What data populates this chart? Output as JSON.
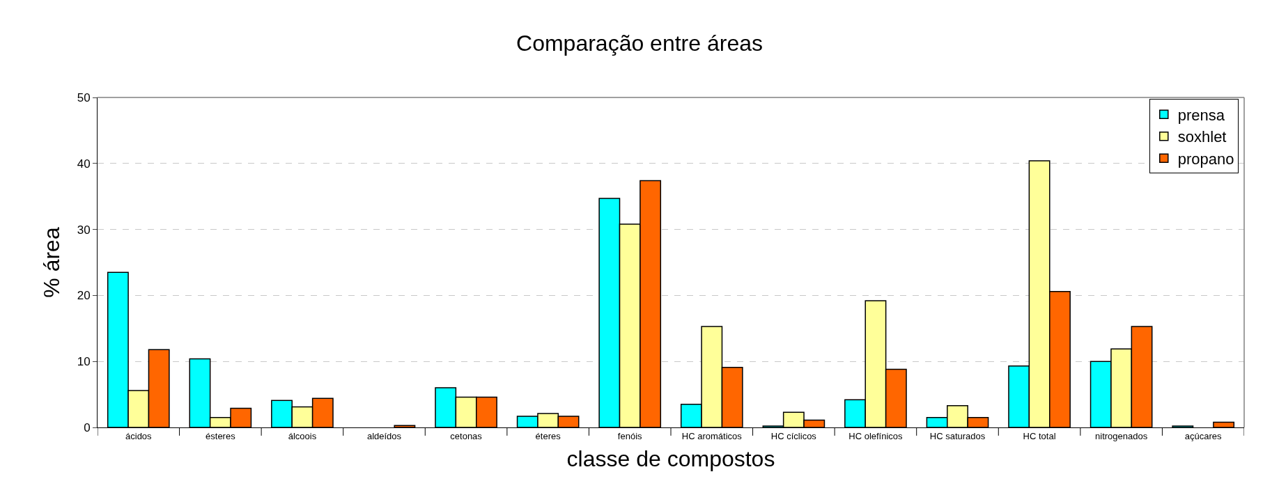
{
  "chart_data": {
    "type": "bar",
    "title": "Comparação entre áreas",
    "xlabel": "classe de compostos",
    "ylabel": "% área",
    "categories": [
      "ácidos",
      "ésteres",
      "álcoois",
      "aldeídos",
      "cetonas",
      "éteres",
      "fenóis",
      "HC aromáticos",
      "HC cíclicos",
      "HC olefínicos",
      "HC saturados",
      "HC total",
      "nitrogenados",
      "açúcares"
    ],
    "series": [
      {
        "name": "prensa",
        "color": "#00ffff",
        "values": [
          23.5,
          10.4,
          4.1,
          0,
          6.0,
          1.7,
          34.7,
          3.5,
          0.2,
          4.2,
          1.5,
          9.3,
          10.0,
          0.2
        ]
      },
      {
        "name": "soxhlet",
        "color": "#ffff99",
        "values": [
          5.6,
          1.5,
          3.1,
          0,
          4.6,
          2.1,
          30.8,
          15.3,
          2.3,
          19.2,
          3.3,
          40.4,
          11.9,
          0
        ]
      },
      {
        "name": "propano",
        "color": "#ff6600",
        "values": [
          11.8,
          2.9,
          4.4,
          0.3,
          4.6,
          1.7,
          37.4,
          9.1,
          1.1,
          8.8,
          1.5,
          20.6,
          15.3,
          0.8
        ]
      }
    ],
    "ylim": [
      0,
      50
    ],
    "yticks": [
      0,
      10,
      20,
      30,
      40,
      50
    ],
    "grid": "y",
    "legend": "top right"
  }
}
